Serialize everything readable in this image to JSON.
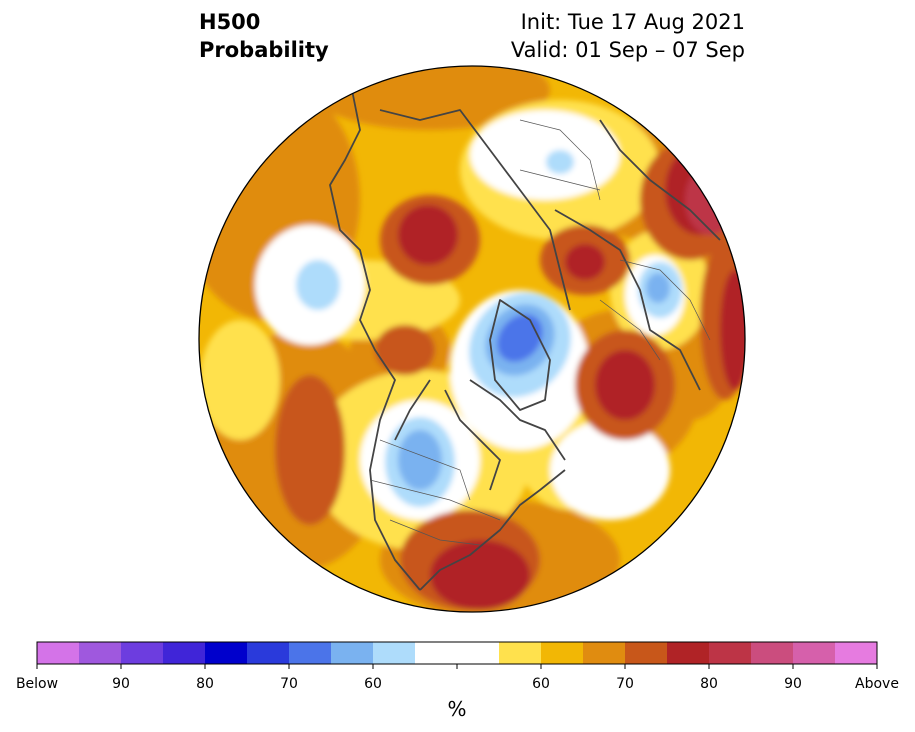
{
  "title": {
    "variable": "H500",
    "product": "Probability",
    "init": "Init: Tue 17 Aug 2021",
    "valid": "Valid: 01 Sep – 07 Sep"
  },
  "colorbar": {
    "unit": "%",
    "colors": [
      "#d473e8",
      "#9f58de",
      "#6d3ddf",
      "#4025d8",
      "#0000cc",
      "#2a3adb",
      "#4b74e9",
      "#7ab2f0",
      "#aedcfb",
      "#ffffff",
      "#ffffff",
      "#ffe14d",
      "#f2b705",
      "#e08c10",
      "#c8571a",
      "#b02326",
      "#bd3446",
      "#cb4d7e",
      "#d660ab",
      "#e67be0"
    ],
    "tick_labels": [
      "Below",
      "90",
      "80",
      "70",
      "60",
      "60",
      "70",
      "80",
      "90",
      "Above"
    ]
  },
  "map": {
    "projection": "north-polar-stereographic",
    "shading": "below/above normal 500 hPa height probability"
  }
}
